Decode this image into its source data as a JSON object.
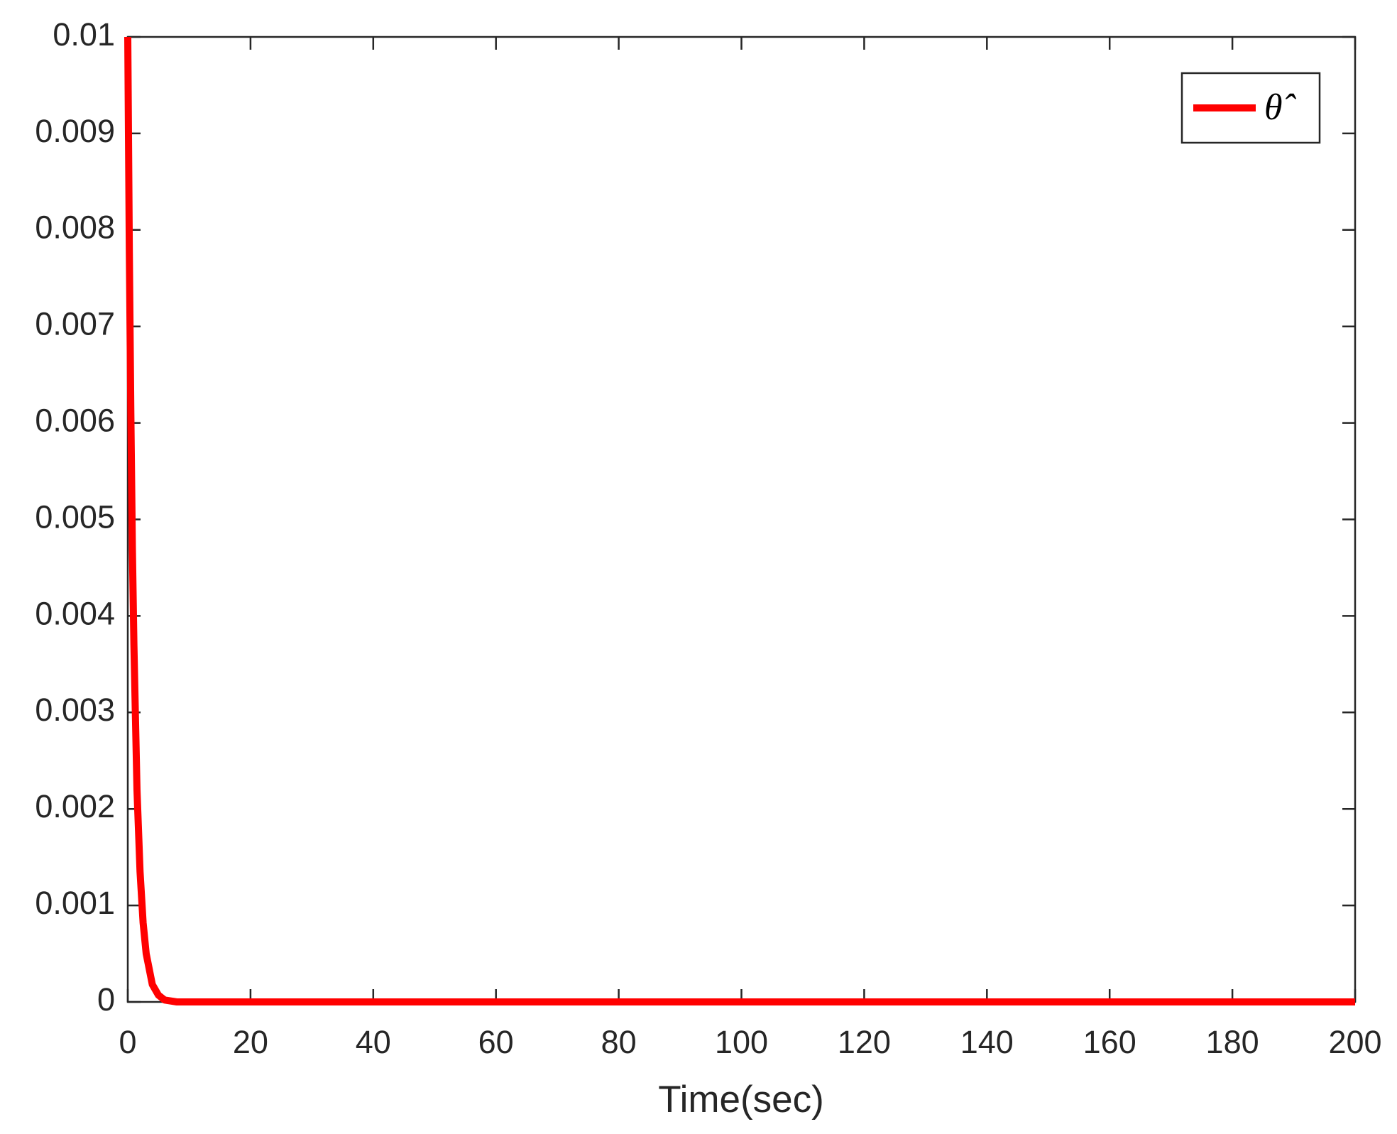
{
  "chart_data": {
    "type": "line",
    "x_label": "Time(sec)",
    "x": [
      0,
      0.25,
      0.5,
      0.75,
      1,
      1.5,
      2,
      2.5,
      3,
      4,
      5,
      6,
      8,
      10,
      20,
      50,
      100,
      150,
      200
    ],
    "series": [
      {
        "name": "θ̂",
        "color": "#ff0000",
        "values": [
          0.01,
          0.0078,
          0.0061,
          0.0047,
          0.0037,
          0.0022,
          0.00135,
          0.00082,
          0.0005,
          0.00018,
          7e-05,
          2e-05,
          0,
          0,
          0,
          0,
          0,
          0,
          0
        ]
      }
    ],
    "xlim": [
      0,
      200
    ],
    "xticks": [
      0,
      20,
      40,
      60,
      80,
      100,
      120,
      140,
      160,
      180,
      200
    ],
    "ylim": [
      0,
      0.01
    ],
    "yticks": [
      0,
      0.001,
      0.002,
      0.003,
      0.004,
      0.005,
      0.006,
      0.007,
      0.008,
      0.009,
      0.01
    ],
    "grid": false,
    "legend": "upper right"
  }
}
